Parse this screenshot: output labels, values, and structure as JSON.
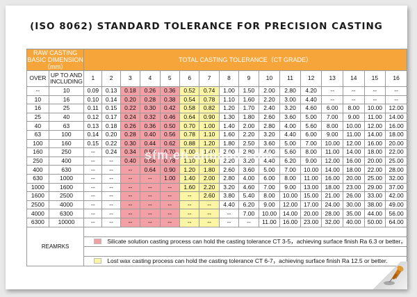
{
  "title": "(ISO 8062)  STANDARD TOLERANCE FOR PRECISION CASTING",
  "header": {
    "dimension_label": "RAW CASTING BASIC DIMENSION（mm）",
    "tolerance_label": "TOTAL CASTING TOLERANCE（CT GRADE）",
    "over_label": "OVER",
    "upto_label": "UP TO AND INCLUDING",
    "grades": [
      "1",
      "2",
      "3",
      "4",
      "5",
      "6",
      "7",
      "8",
      "9",
      "10",
      "11",
      "12",
      "13",
      "14",
      "15",
      "16"
    ]
  },
  "rows": [
    {
      "over": "--",
      "upto": "10",
      "values": [
        "0.09",
        "0.13",
        "0.18",
        "0.26",
        "0.36",
        "0.52",
        "0.74",
        "1.00",
        "1.50",
        "2.00",
        "2.80",
        "4.20",
        "--",
        "--",
        "--",
        "--"
      ]
    },
    {
      "over": "10",
      "upto": "16",
      "values": [
        "0.10",
        "0.14",
        "0.20",
        "0.28",
        "0.38",
        "0.54",
        "0.78",
        "1.10",
        "1.60",
        "2.20",
        "3.00",
        "4.40",
        "--",
        "--",
        "--",
        "--"
      ]
    },
    {
      "over": "16",
      "upto": "25",
      "values": [
        "0.11",
        "0.15",
        "0.22",
        "0.30",
        "0.42",
        "0.58",
        "0.82",
        "1.20",
        "1.70",
        "2.40",
        "3.20",
        "4.60",
        "6.00",
        "8.00",
        "10.00",
        "12.00"
      ]
    },
    {
      "over": "25",
      "upto": "40",
      "values": [
        "0.12",
        "0.17",
        "0.24",
        "0.32",
        "0.46",
        "0.64",
        "0.90",
        "1.30",
        "1.80",
        "2.60",
        "3.60",
        "5.00",
        "7.00",
        "9.00",
        "11.00",
        "14.00"
      ]
    },
    {
      "over": "40",
      "upto": "63",
      "values": [
        "0.13",
        "0.18",
        "0.26",
        "0.36",
        "0.50",
        "0.70",
        "1.00",
        "1.40",
        "2.00",
        "2.80",
        "4.00",
        "5.60",
        "8.00",
        "10.00",
        "12.00",
        "16.00"
      ]
    },
    {
      "over": "63",
      "upto": "100",
      "values": [
        "0.14",
        "0.20",
        "0.28",
        "0.40",
        "0.56",
        "0.78",
        "1.10",
        "1.60",
        "2.20",
        "3.20",
        "4.40",
        "6.00",
        "9.00",
        "11.00",
        "14.00",
        "18.00"
      ]
    },
    {
      "over": "100",
      "upto": "160",
      "values": [
        "0.15",
        "0.22",
        "0.30",
        "0.44",
        "0.62",
        "0.88",
        "1.20",
        "1.80",
        "2.50",
        "3.60",
        "5.00",
        "7.00",
        "10.00",
        "12.00",
        "16.00",
        "20.00"
      ]
    },
    {
      "over": "160",
      "upto": "250",
      "values": [
        "--",
        "0.24",
        "0.34",
        "0.50",
        "0.70",
        "1.00",
        "1.40",
        "2.00",
        "2.80",
        "4.00",
        "5.60",
        "8.00",
        "11.00",
        "14.00",
        "18.00",
        "22.00"
      ]
    },
    {
      "over": "250",
      "upto": "400",
      "values": [
        "--",
        "--",
        "0.40",
        "0.56",
        "0.78",
        "1.10",
        "1.60",
        "2.20",
        "3.20",
        "4.40",
        "6.20",
        "9.00",
        "12.00",
        "16.00",
        "20.00",
        "25.00"
      ]
    },
    {
      "over": "400",
      "upto": "630",
      "values": [
        "--",
        "--",
        "--",
        "0.64",
        "0.90",
        "1.20",
        "1.80",
        "2.60",
        "3.60",
        "5.00",
        "7.00",
        "10.00",
        "14.00",
        "18.00",
        "22.00",
        "28.00"
      ]
    },
    {
      "over": "630",
      "upto": "1000",
      "values": [
        "--",
        "--",
        "--",
        "--",
        "1.00",
        "1.40",
        "2.00",
        "2.80",
        "4.00",
        "6.00",
        "8.00",
        "11.00",
        "16.00",
        "20.00",
        "25.00",
        "32.00"
      ]
    },
    {
      "over": "1000",
      "upto": "1600",
      "values": [
        "--",
        "--",
        "--",
        "--",
        "--",
        "1.60",
        "2.20",
        "3.20",
        "4.60",
        "7.00",
        "9.00",
        "13.00",
        "18.00",
        "23.00",
        "29.00",
        "37.00"
      ]
    },
    {
      "over": "1600",
      "upto": "2500",
      "values": [
        "--",
        "--",
        "--",
        "--",
        "--",
        "--",
        "2.60",
        "3.80",
        "5.40",
        "8.00",
        "10.00",
        "15.00",
        "21.00",
        "26.00",
        "33.00",
        "42.00"
      ]
    },
    {
      "over": "2500",
      "upto": "4000",
      "values": [
        "--",
        "--",
        "--",
        "--",
        "--",
        "--",
        "--",
        "4.40",
        "6.20",
        "9.00",
        "12.00",
        "17.00",
        "24.00",
        "30.00",
        "38.00",
        "49.00"
      ]
    },
    {
      "over": "4000",
      "upto": "6300",
      "values": [
        "--",
        "--",
        "--",
        "--",
        "--",
        "--",
        "--",
        "--",
        "7.00",
        "10.00",
        "14.00",
        "20.00",
        "28.00",
        "35.00",
        "44.00",
        "56.00"
      ]
    },
    {
      "over": "6300",
      "upto": "10000",
      "values": [
        "--",
        "--",
        "--",
        "--",
        "--",
        "--",
        "--",
        "--",
        "--",
        "11.00",
        "16.00",
        "23.00",
        "32.00",
        "40.00",
        "50.00",
        "64.00"
      ]
    }
  ],
  "remarks": {
    "label": "REAMRKS",
    "silicate": "Silicate solution casting process can hold the casting tolerance CT 3-5，achieving surface finish Ra 6.3 or better。",
    "lost_wax": "Lost wax casting process can hold the casting tolerance CT 6-7，achieving surface finish Ra 12.5 or better."
  },
  "watermark": "sfm.en.alibaba.com",
  "colors": {
    "header_orange": "#f6a53b",
    "silicate_pink": "#f2a0a6",
    "lostwax_yellow": "#fbf5a4"
  }
}
